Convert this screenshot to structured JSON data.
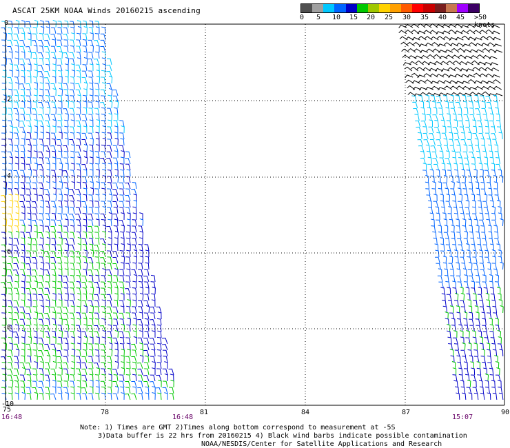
{
  "title": "ASCAT 25KM NOAA Winds 20160215 ascending",
  "legend": {
    "colors": [
      "#505050",
      "#a0a0a0",
      "#00c8ff",
      "#0064ff",
      "#0000c8",
      "#00c800",
      "#a0c800",
      "#ffd200",
      "#ffa000",
      "#ff5a00",
      "#ff0000",
      "#c80000",
      "#781e1e",
      "#c87850",
      "#a000ff",
      "#3c0064"
    ],
    "labels": [
      "0",
      "5",
      "10",
      "15",
      "20",
      "25",
      "30",
      "35",
      "40",
      "45",
      ">50 knots"
    ]
  },
  "axes": {
    "x_labels": [
      "75",
      "78",
      "81",
      "84",
      "87",
      "90"
    ],
    "y_labels": [
      "0",
      "-2",
      "-4",
      "-6",
      "-8",
      "-10"
    ]
  },
  "times": [
    "16:48",
    "16:48",
    "15:07"
  ],
  "notes": {
    "line1": "Note: 1) Times are GMT 2)Times along bottom correspond to measurement at -5S",
    "line2": "3)Data buffer is 22 hrs from 20160215 4) Black wind barbs indicate possible contamination",
    "line3": "NOAA/NESDIS/Center for Satellite Applications and Research"
  }
}
